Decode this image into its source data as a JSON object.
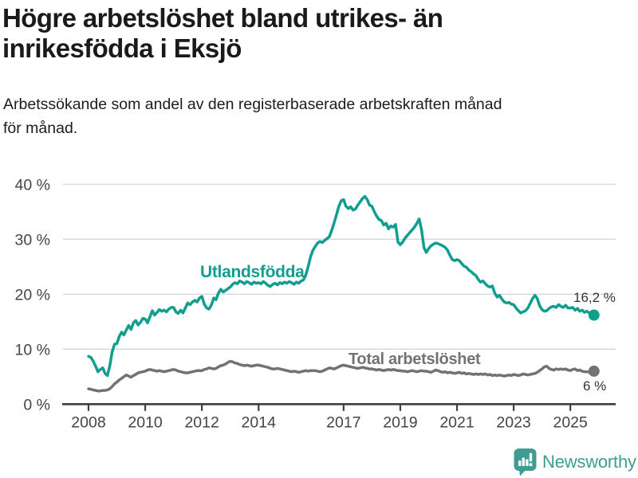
{
  "header": {},
  "chart_data": {
    "type": "line",
    "title_lines": [
      "Högre arbetslöshet bland utrikes- än",
      "inrikesfödda i Eksjö"
    ],
    "title": "Högre arbetslöshet bland utrikes- än inrikesfödda i Eksjö",
    "subtitle_lines": [
      "Arbetssökande som andel av den registerbaserade arbetskraften månad",
      "för månad."
    ],
    "subtitle": "Arbetssökande som andel av den registerbaserade arbetskraften månad för månad.",
    "x_start": "2008-01",
    "x_end": "2025-11",
    "points_per_year": 12,
    "ylim": [
      0,
      43
    ],
    "grid": true,
    "legend_position": "inline-labels",
    "yticks": [
      {
        "v": 0,
        "label": "0 %"
      },
      {
        "v": 10,
        "label": "10 %"
      },
      {
        "v": 20,
        "label": "20 %"
      },
      {
        "v": 30,
        "label": "30 %"
      },
      {
        "v": 40,
        "label": "40 %"
      }
    ],
    "xticks": [
      {
        "v": 2008,
        "label": "2008"
      },
      {
        "v": 2010,
        "label": "2010"
      },
      {
        "v": 2012,
        "label": "2012"
      },
      {
        "v": 2014,
        "label": "2014"
      },
      {
        "v": 2017,
        "label": "2017"
      },
      {
        "v": 2019,
        "label": "2019"
      },
      {
        "v": 2021,
        "label": "2021"
      },
      {
        "v": 2023,
        "label": "2023"
      },
      {
        "v": 2025,
        "label": "2025"
      }
    ],
    "series": [
      {
        "name": "Utlandsfödda",
        "color": "#119e8f",
        "end_label": "16,2 %",
        "end_value": 16.2,
        "values": [
          8.7,
          8.5,
          7.8,
          6.9,
          5.9,
          6.3,
          6.6,
          5.6,
          5.2,
          7.0,
          9.5,
          10.9,
          11.0,
          12.3,
          13.1,
          12.6,
          13.5,
          14.3,
          13.6,
          14.8,
          15.2,
          14.4,
          14.9,
          15.6,
          15.5,
          14.8,
          15.9,
          17.0,
          16.2,
          16.7,
          17.2,
          16.9,
          17.1,
          16.8,
          17.3,
          17.6,
          17.6,
          16.8,
          16.5,
          17.1,
          16.6,
          17.5,
          18.4,
          18.1,
          18.6,
          18.9,
          18.6,
          19.3,
          19.6,
          18.2,
          17.5,
          17.3,
          18.0,
          19.3,
          19.0,
          20.2,
          20.9,
          20.4,
          20.7,
          21.0,
          21.3,
          21.8,
          22.1,
          21.9,
          22.4,
          22.2,
          21.9,
          22.3,
          22.1,
          21.8,
          22.2,
          22.0,
          22.1,
          21.9,
          22.3,
          22.0,
          21.6,
          21.4,
          21.8,
          22.0,
          21.7,
          22.1,
          21.9,
          22.2,
          22.0,
          22.3,
          22.1,
          21.8,
          22.2,
          22.0,
          22.4,
          22.6,
          23.5,
          25.0,
          26.8,
          28.0,
          28.7,
          29.3,
          29.6,
          29.4,
          29.8,
          30.1,
          30.5,
          31.7,
          33.0,
          34.5,
          36.0,
          37.0,
          37.2,
          36.0,
          35.6,
          35.9,
          35.3,
          35.5,
          36.2,
          36.8,
          37.4,
          37.8,
          37.2,
          36.2,
          36.0,
          35.0,
          34.2,
          33.6,
          33.4,
          32.6,
          32.9,
          31.9,
          32.4,
          32.2,
          32.7,
          29.5,
          29.0,
          29.5,
          30.2,
          30.7,
          31.2,
          31.7,
          32.2,
          32.9,
          33.7,
          31.7,
          28.5,
          27.6,
          28.3,
          28.8,
          29.1,
          29.3,
          29.2,
          29.0,
          28.8,
          28.5,
          28.0,
          27.1,
          26.3,
          26.1,
          26.3,
          26.1,
          25.6,
          25.1,
          24.9,
          24.4,
          24.1,
          23.7,
          23.4,
          22.7,
          22.2,
          22.4,
          21.9,
          21.5,
          21.3,
          21.5,
          20.2,
          19.5,
          19.8,
          19.1,
          18.6,
          18.4,
          18.5,
          18.2,
          18.1,
          17.5,
          17.0,
          16.6,
          16.8,
          17.0,
          17.5,
          18.3,
          19.2,
          19.8,
          19.2,
          17.9,
          17.2,
          16.9,
          17.0,
          17.4,
          17.7,
          17.8,
          17.6,
          18.1,
          17.8,
          17.6,
          18.0,
          17.5,
          17.5,
          17.6,
          17.1,
          17.4,
          16.9,
          17.1,
          16.7,
          16.9,
          16.6,
          16.4,
          16.2
        ]
      },
      {
        "name": "Total arbetslöshet",
        "color": "#727272",
        "end_label": "6 %",
        "end_value": 6.0,
        "values": [
          2.8,
          2.7,
          2.6,
          2.5,
          2.4,
          2.4,
          2.5,
          2.5,
          2.6,
          2.8,
          3.2,
          3.7,
          4.0,
          4.4,
          4.7,
          5.0,
          5.3,
          5.1,
          4.9,
          5.2,
          5.4,
          5.7,
          5.8,
          5.9,
          6.0,
          6.2,
          6.3,
          6.2,
          6.1,
          6.0,
          6.1,
          6.0,
          5.9,
          6.0,
          6.1,
          6.2,
          6.3,
          6.2,
          6.0,
          5.9,
          5.8,
          5.7,
          5.7,
          5.8,
          5.9,
          6.0,
          6.1,
          6.1,
          6.1,
          6.3,
          6.4,
          6.6,
          6.5,
          6.4,
          6.5,
          6.8,
          7.0,
          7.1,
          7.3,
          7.6,
          7.8,
          7.7,
          7.5,
          7.4,
          7.2,
          7.1,
          7.0,
          7.1,
          7.0,
          6.9,
          7.0,
          7.1,
          7.1,
          7.0,
          6.9,
          6.8,
          6.7,
          6.5,
          6.4,
          6.4,
          6.5,
          6.4,
          6.3,
          6.2,
          6.1,
          6.0,
          5.9,
          6.0,
          5.9,
          5.8,
          5.9,
          6.0,
          6.1,
          6.0,
          6.1,
          6.1,
          6.1,
          6.0,
          5.9,
          6.0,
          6.2,
          6.4,
          6.6,
          6.5,
          6.4,
          6.6,
          6.8,
          7.0,
          7.1,
          7.0,
          6.9,
          6.8,
          6.7,
          6.6,
          6.5,
          6.6,
          6.7,
          6.6,
          6.5,
          6.4,
          6.4,
          6.3,
          6.2,
          6.3,
          6.2,
          6.1,
          6.2,
          6.3,
          6.2,
          6.3,
          6.2,
          6.1,
          6.1,
          6.0,
          6.0,
          5.9,
          6.0,
          6.1,
          6.0,
          5.9,
          6.0,
          6.1,
          6.0,
          6.0,
          5.9,
          5.8,
          6.0,
          6.2,
          6.1,
          5.9,
          5.8,
          5.9,
          5.7,
          5.8,
          5.7,
          5.6,
          5.7,
          5.8,
          5.6,
          5.7,
          5.5,
          5.6,
          5.5,
          5.4,
          5.5,
          5.4,
          5.5,
          5.4,
          5.5,
          5.3,
          5.4,
          5.2,
          5.3,
          5.2,
          5.3,
          5.2,
          5.1,
          5.2,
          5.3,
          5.2,
          5.4,
          5.3,
          5.2,
          5.3,
          5.5,
          5.4,
          5.3,
          5.4,
          5.5,
          5.6,
          5.8,
          6.1,
          6.4,
          6.8,
          6.9,
          6.5,
          6.3,
          6.2,
          6.4,
          6.3,
          6.4,
          6.3,
          6.4,
          6.2,
          6.1,
          6.3,
          6.4,
          6.1,
          6.2,
          6.0,
          5.9,
          5.9,
          5.8,
          5.9,
          6.0
        ]
      }
    ]
  },
  "footer": {
    "brand_name": "Newsworthy",
    "logo_color": "#3e9d90"
  },
  "colors": {
    "accent_teal": "#119e8f",
    "line_gray": "#727272",
    "gridline": "#d8d8d8",
    "axis": "#3f3f3f",
    "tick_text": "#454545",
    "text_dark": "#1a1a1a"
  }
}
